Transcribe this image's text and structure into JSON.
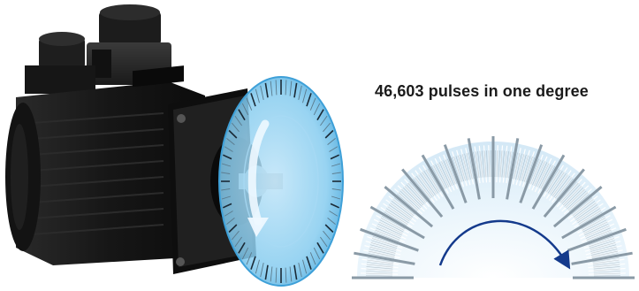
{
  "caption": {
    "text": "46,603 pulses in one degree"
  },
  "illustration": {
    "subject": "servo-motor-with-encoder-disc",
    "motor_color": "#1a1a1a",
    "disc_color": "#7cc6ee",
    "disc_edge_color": "#3ea0d8",
    "rotation_arrow_color": "#e9f6ff"
  },
  "encoder_detail": {
    "type": "semicircular-pulse-scale",
    "fan_color": "#dcedf8",
    "tick_color": "#8ea0ad",
    "long_tick_color": "#8a9aa6",
    "arrow_color": "#143a8c"
  }
}
